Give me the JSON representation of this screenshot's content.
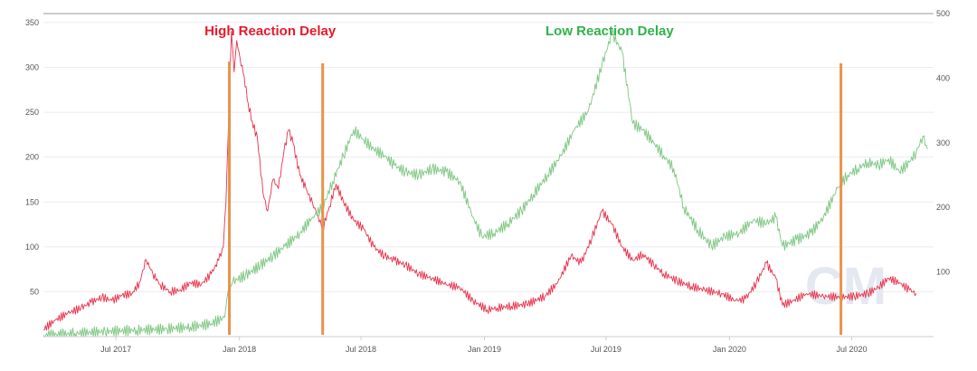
{
  "chart_data": {
    "type": "line",
    "title": "",
    "grid": true,
    "x_range": [
      "2017-03-15",
      "2020-10-31"
    ],
    "x_ticks": [
      {
        "date": "2017-07-01",
        "label": "Jul 2017"
      },
      {
        "date": "2018-01-01",
        "label": "Jan 2018"
      },
      {
        "date": "2018-07-01",
        "label": "Jul 2018"
      },
      {
        "date": "2019-01-01",
        "label": "Jan 2019"
      },
      {
        "date": "2019-07-01",
        "label": "Jul 2019"
      },
      {
        "date": "2020-01-01",
        "label": "Jan 2020"
      },
      {
        "date": "2020-07-01",
        "label": "Jul 2020"
      }
    ],
    "y_left": {
      "range": [
        0,
        360
      ],
      "ticks": [
        50,
        100,
        150,
        200,
        250,
        300,
        350
      ]
    },
    "y_right": {
      "range": [
        0,
        500
      ],
      "ticks": [
        100,
        200,
        300,
        400,
        500
      ]
    },
    "annotations": [
      {
        "text": "High Reaction Delay",
        "color": "#e8192c",
        "x": "2018-01-01"
      },
      {
        "text": "Low Reaction Delay",
        "color": "#2db34a",
        "x": "2019-07-01"
      }
    ],
    "vertical_markers": {
      "color": "#e8924a",
      "dates": [
        "2017-12-17",
        "2018-05-05",
        "2020-06-15"
      ]
    },
    "watermark": "CM",
    "series": [
      {
        "color": "#e8324a",
        "axis": "left",
        "points": [
          [
            "2017-03-15",
            8
          ],
          [
            "2017-04-01",
            18
          ],
          [
            "2017-04-20",
            26
          ],
          [
            "2017-05-10",
            32
          ],
          [
            "2017-05-25",
            38
          ],
          [
            "2017-06-10",
            44
          ],
          [
            "2017-06-25",
            40
          ],
          [
            "2017-07-10",
            46
          ],
          [
            "2017-07-25",
            48
          ],
          [
            "2017-08-05",
            60
          ],
          [
            "2017-08-15",
            86
          ],
          [
            "2017-08-25",
            70
          ],
          [
            "2017-09-05",
            58
          ],
          [
            "2017-09-20",
            50
          ],
          [
            "2017-10-05",
            52
          ],
          [
            "2017-10-20",
            60
          ],
          [
            "2017-11-05",
            58
          ],
          [
            "2017-11-20",
            70
          ],
          [
            "2017-12-01",
            85
          ],
          [
            "2017-12-08",
            100
          ],
          [
            "2017-12-12",
            150
          ],
          [
            "2017-12-16",
            240
          ],
          [
            "2017-12-20",
            340
          ],
          [
            "2017-12-24",
            295
          ],
          [
            "2017-12-28",
            330
          ],
          [
            "2018-01-02",
            310
          ],
          [
            "2018-01-08",
            290
          ],
          [
            "2018-01-14",
            260
          ],
          [
            "2018-01-20",
            240
          ],
          [
            "2018-01-28",
            220
          ],
          [
            "2018-02-05",
            160
          ],
          [
            "2018-02-12",
            140
          ],
          [
            "2018-02-20",
            175
          ],
          [
            "2018-02-28",
            165
          ],
          [
            "2018-03-08",
            205
          ],
          [
            "2018-03-15",
            230
          ],
          [
            "2018-03-22",
            215
          ],
          [
            "2018-04-01",
            180
          ],
          [
            "2018-04-10",
            165
          ],
          [
            "2018-04-20",
            148
          ],
          [
            "2018-04-28",
            135
          ],
          [
            "2018-05-05",
            120
          ],
          [
            "2018-05-15",
            145
          ],
          [
            "2018-05-25",
            170
          ],
          [
            "2018-06-05",
            150
          ],
          [
            "2018-06-20",
            130
          ],
          [
            "2018-07-05",
            120
          ],
          [
            "2018-07-20",
            100
          ],
          [
            "2018-08-05",
            90
          ],
          [
            "2018-08-20",
            85
          ],
          [
            "2018-09-05",
            80
          ],
          [
            "2018-09-25",
            70
          ],
          [
            "2018-10-15",
            65
          ],
          [
            "2018-11-05",
            58
          ],
          [
            "2018-11-25",
            55
          ],
          [
            "2018-12-15",
            40
          ],
          [
            "2019-01-05",
            30
          ],
          [
            "2019-01-20",
            32
          ],
          [
            "2019-02-10",
            34
          ],
          [
            "2019-03-05",
            36
          ],
          [
            "2019-04-01",
            45
          ],
          [
            "2019-04-20",
            60
          ],
          [
            "2019-05-10",
            90
          ],
          [
            "2019-05-25",
            82
          ],
          [
            "2019-06-10",
            110
          ],
          [
            "2019-06-25",
            140
          ],
          [
            "2019-07-10",
            125
          ],
          [
            "2019-07-25",
            100
          ],
          [
            "2019-08-10",
            85
          ],
          [
            "2019-08-25",
            92
          ],
          [
            "2019-09-10",
            80
          ],
          [
            "2019-09-25",
            70
          ],
          [
            "2019-10-15",
            62
          ],
          [
            "2019-11-05",
            56
          ],
          [
            "2019-11-25",
            52
          ],
          [
            "2019-12-20",
            48
          ],
          [
            "2020-01-10",
            40
          ],
          [
            "2020-01-25",
            42
          ],
          [
            "2020-02-10",
            60
          ],
          [
            "2020-02-25",
            82
          ],
          [
            "2020-03-10",
            65
          ],
          [
            "2020-03-20",
            35
          ],
          [
            "2020-04-05",
            40
          ],
          [
            "2020-04-25",
            48
          ],
          [
            "2020-05-20",
            45
          ],
          [
            "2020-06-15",
            44
          ],
          [
            "2020-07-05",
            45
          ],
          [
            "2020-07-25",
            48
          ],
          [
            "2020-08-10",
            55
          ],
          [
            "2020-08-25",
            65
          ],
          [
            "2020-09-10",
            60
          ],
          [
            "2020-09-25",
            52
          ],
          [
            "2020-10-05",
            48
          ]
        ]
      },
      {
        "color": "#7bc67f",
        "axis": "right",
        "points": [
          [
            "2017-03-15",
            2
          ],
          [
            "2017-05-01",
            5
          ],
          [
            "2017-06-15",
            8
          ],
          [
            "2017-08-01",
            10
          ],
          [
            "2017-09-15",
            12
          ],
          [
            "2017-10-20",
            15
          ],
          [
            "2017-11-20",
            20
          ],
          [
            "2017-12-10",
            30
          ],
          [
            "2017-12-15",
            70
          ],
          [
            "2017-12-22",
            85
          ],
          [
            "2018-01-10",
            95
          ],
          [
            "2018-02-01",
            110
          ],
          [
            "2018-02-20",
            125
          ],
          [
            "2018-03-10",
            140
          ],
          [
            "2018-04-01",
            160
          ],
          [
            "2018-04-20",
            185
          ],
          [
            "2018-05-05",
            200
          ],
          [
            "2018-05-20",
            240
          ],
          [
            "2018-06-05",
            280
          ],
          [
            "2018-06-20",
            320
          ],
          [
            "2018-07-05",
            305
          ],
          [
            "2018-07-20",
            290
          ],
          [
            "2018-08-05",
            280
          ],
          [
            "2018-08-20",
            265
          ],
          [
            "2018-09-05",
            255
          ],
          [
            "2018-09-25",
            250
          ],
          [
            "2018-10-15",
            260
          ],
          [
            "2018-11-05",
            255
          ],
          [
            "2018-11-25",
            240
          ],
          [
            "2018-12-15",
            185
          ],
          [
            "2018-12-28",
            155
          ],
          [
            "2019-01-15",
            160
          ],
          [
            "2019-02-05",
            175
          ],
          [
            "2019-02-25",
            195
          ],
          [
            "2019-03-15",
            220
          ],
          [
            "2019-04-05",
            250
          ],
          [
            "2019-04-25",
            280
          ],
          [
            "2019-05-15",
            320
          ],
          [
            "2019-06-05",
            350
          ],
          [
            "2019-06-25",
            420
          ],
          [
            "2019-07-10",
            470
          ],
          [
            "2019-07-25",
            440
          ],
          [
            "2019-08-10",
            330
          ],
          [
            "2019-08-25",
            320
          ],
          [
            "2019-09-10",
            300
          ],
          [
            "2019-09-25",
            280
          ],
          [
            "2019-10-10",
            260
          ],
          [
            "2019-10-25",
            200
          ],
          [
            "2019-11-15",
            165
          ],
          [
            "2019-12-05",
            140
          ],
          [
            "2019-12-25",
            155
          ],
          [
            "2020-01-15",
            160
          ],
          [
            "2020-02-05",
            180
          ],
          [
            "2020-02-25",
            175
          ],
          [
            "2020-03-10",
            185
          ],
          [
            "2020-03-20",
            140
          ],
          [
            "2020-04-10",
            150
          ],
          [
            "2020-05-01",
            160
          ],
          [
            "2020-05-20",
            185
          ],
          [
            "2020-06-10",
            230
          ],
          [
            "2020-06-25",
            250
          ],
          [
            "2020-07-10",
            260
          ],
          [
            "2020-07-25",
            270
          ],
          [
            "2020-08-10",
            265
          ],
          [
            "2020-08-25",
            275
          ],
          [
            "2020-09-10",
            255
          ],
          [
            "2020-09-25",
            270
          ],
          [
            "2020-10-05",
            285
          ],
          [
            "2020-10-15",
            310
          ],
          [
            "2020-10-22",
            290
          ]
        ]
      }
    ]
  }
}
